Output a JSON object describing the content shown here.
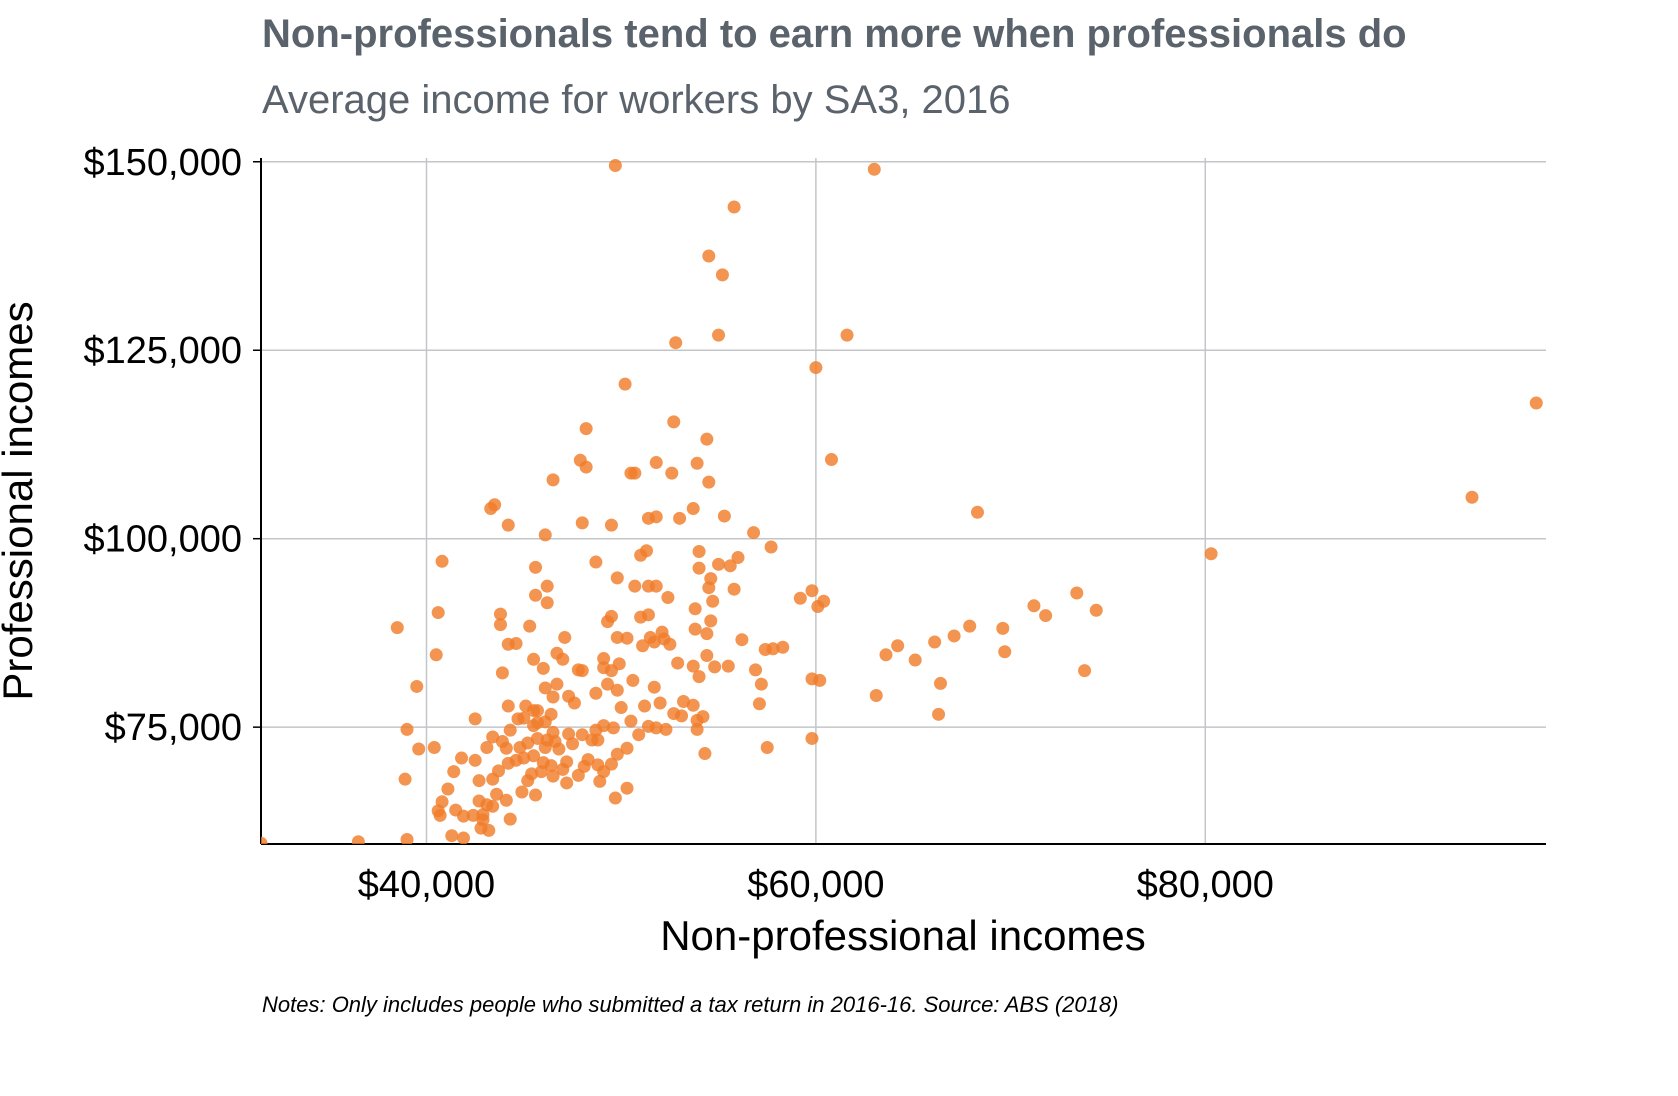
{
  "chart_data": {
    "type": "scatter",
    "title": "Non-professionals tend to earn more when professionals do",
    "subtitle": "Average income for workers by SA3, 2016",
    "xlabel": "Non-professional incomes",
    "ylabel": "Professional incomes",
    "notes": "Notes: Only includes people who submitted a tax return in 2016-16. Source: ABS (2018)",
    "xlim": [
      31500,
      97500
    ],
    "ylim": [
      59500,
      150500
    ],
    "xticks": [
      {
        "value": 40000,
        "label": "$40,000"
      },
      {
        "value": 60000,
        "label": "$60,000"
      },
      {
        "value": 80000,
        "label": "$80,000"
      }
    ],
    "yticks": [
      {
        "value": 75000,
        "label": "$75,000"
      },
      {
        "value": 100000,
        "label": "$100,000"
      },
      {
        "value": 125000,
        "label": "$125,000"
      },
      {
        "value": 150000,
        "label": "$150,000"
      }
    ],
    "grid": true,
    "point_color": "#f07d29",
    "points": [
      [
        49700,
        149500
      ],
      [
        63000,
        149000
      ],
      [
        55800,
        144000
      ],
      [
        54500,
        137500
      ],
      [
        55200,
        135000
      ],
      [
        55000,
        127000
      ],
      [
        61600,
        127000
      ],
      [
        52800,
        126000
      ],
      [
        60000,
        122700
      ],
      [
        50200,
        120500
      ],
      [
        93700,
        105500
      ],
      [
        97000,
        118000
      ],
      [
        80300,
        98000
      ],
      [
        68300,
        103500
      ],
      [
        60800,
        110500
      ],
      [
        52700,
        115500
      ],
      [
        48200,
        114600
      ],
      [
        54400,
        113200
      ],
      [
        47900,
        110400
      ],
      [
        48200,
        109500
      ],
      [
        50500,
        108700
      ],
      [
        50700,
        108700
      ],
      [
        51800,
        110100
      ],
      [
        52600,
        108700
      ],
      [
        53900,
        110000
      ],
      [
        54500,
        107500
      ],
      [
        46500,
        107800
      ],
      [
        43500,
        104500
      ],
      [
        43300,
        104000
      ],
      [
        44200,
        101800
      ],
      [
        46100,
        100500
      ],
      [
        48000,
        102100
      ],
      [
        49500,
        101800
      ],
      [
        51400,
        102700
      ],
      [
        51800,
        102900
      ],
      [
        53000,
        102700
      ],
      [
        53700,
        104000
      ],
      [
        55300,
        103000
      ],
      [
        56800,
        100800
      ],
      [
        57700,
        98900
      ],
      [
        40800,
        97000
      ],
      [
        40600,
        90200
      ],
      [
        40500,
        84600
      ],
      [
        39500,
        80400
      ],
      [
        38500,
        88200
      ],
      [
        39000,
        74700
      ],
      [
        38900,
        68100
      ],
      [
        39600,
        72100
      ],
      [
        40400,
        72300
      ],
      [
        36500,
        59800
      ],
      [
        39000,
        60100
      ],
      [
        31500,
        59600
      ],
      [
        43800,
        90000
      ],
      [
        43800,
        88600
      ],
      [
        44200,
        86000
      ],
      [
        44600,
        86100
      ],
      [
        43900,
        82200
      ],
      [
        45300,
        88400
      ],
      [
        45600,
        96200
      ],
      [
        45600,
        92500
      ],
      [
        46200,
        93700
      ],
      [
        46200,
        91500
      ],
      [
        48700,
        96900
      ],
      [
        49800,
        94800
      ],
      [
        50700,
        93700
      ],
      [
        51400,
        93700
      ],
      [
        51800,
        93700
      ],
      [
        51300,
        98400
      ],
      [
        51000,
        97800
      ],
      [
        52400,
        92200
      ],
      [
        54000,
        96100
      ],
      [
        54500,
        93500
      ],
      [
        54700,
        91700
      ],
      [
        54600,
        94700
      ],
      [
        55000,
        96600
      ],
      [
        55600,
        96400
      ],
      [
        56000,
        97500
      ],
      [
        55800,
        93300
      ],
      [
        54000,
        98300
      ],
      [
        53800,
        90700
      ],
      [
        49500,
        89700
      ],
      [
        49300,
        89000
      ],
      [
        49800,
        86900
      ],
      [
        51000,
        89600
      ],
      [
        51400,
        89900
      ],
      [
        52100,
        87600
      ],
      [
        51500,
        86900
      ],
      [
        52200,
        86700
      ],
      [
        52500,
        86000
      ],
      [
        51700,
        86300
      ],
      [
        51100,
        85800
      ],
      [
        50300,
        86800
      ],
      [
        53800,
        88000
      ],
      [
        54400,
        87400
      ],
      [
        54600,
        89100
      ],
      [
        54400,
        84500
      ],
      [
        54800,
        83000
      ],
      [
        55500,
        83100
      ],
      [
        56200,
        86600
      ],
      [
        56900,
        82600
      ],
      [
        57400,
        85300
      ],
      [
        57800,
        85400
      ],
      [
        58300,
        85600
      ],
      [
        59200,
        92100
      ],
      [
        59800,
        93100
      ],
      [
        60100,
        91000
      ],
      [
        60400,
        91700
      ],
      [
        57200,
        80700
      ],
      [
        57100,
        78100
      ],
      [
        59800,
        81400
      ],
      [
        60200,
        81200
      ],
      [
        57500,
        72300
      ],
      [
        59800,
        73500
      ],
      [
        63100,
        79200
      ],
      [
        63600,
        84600
      ],
      [
        64200,
        85800
      ],
      [
        65100,
        83900
      ],
      [
        66100,
        86300
      ],
      [
        66400,
        80800
      ],
      [
        66300,
        76700
      ],
      [
        67100,
        87100
      ],
      [
        67900,
        88400
      ],
      [
        69600,
        88100
      ],
      [
        69700,
        85000
      ],
      [
        71200,
        91100
      ],
      [
        71800,
        89800
      ],
      [
        73400,
        92800
      ],
      [
        73800,
        82500
      ],
      [
        74400,
        90500
      ],
      [
        45500,
        84000
      ],
      [
        46000,
        82800
      ],
      [
        46700,
        84800
      ],
      [
        47100,
        86900
      ],
      [
        47000,
        84000
      ],
      [
        46100,
        80200
      ],
      [
        46700,
        80700
      ],
      [
        47800,
        82600
      ],
      [
        48000,
        82500
      ],
      [
        49100,
        84100
      ],
      [
        49100,
        82900
      ],
      [
        49500,
        82500
      ],
      [
        49900,
        83400
      ],
      [
        49300,
        80700
      ],
      [
        49800,
        79900
      ],
      [
        50600,
        81200
      ],
      [
        50000,
        77600
      ],
      [
        48700,
        79500
      ],
      [
        47600,
        78200
      ],
      [
        47300,
        79100
      ],
      [
        46500,
        79000
      ],
      [
        45700,
        77200
      ],
      [
        46400,
        76700
      ],
      [
        46100,
        75700
      ],
      [
        45500,
        77200
      ],
      [
        45100,
        77800
      ],
      [
        45000,
        76200
      ],
      [
        44700,
        76100
      ],
      [
        45500,
        75200
      ],
      [
        45700,
        75600
      ],
      [
        44200,
        77800
      ],
      [
        44300,
        74600
      ],
      [
        43400,
        73700
      ],
      [
        43100,
        72300
      ],
      [
        42500,
        76100
      ],
      [
        43900,
        73100
      ],
      [
        44100,
        72200
      ],
      [
        44800,
        72300
      ],
      [
        45200,
        72900
      ],
      [
        45700,
        73500
      ],
      [
        46500,
        74300
      ],
      [
        46600,
        73100
      ],
      [
        46100,
        72300
      ],
      [
        46800,
        72100
      ],
      [
        47300,
        74100
      ],
      [
        47500,
        72800
      ],
      [
        48000,
        74000
      ],
      [
        48500,
        73300
      ],
      [
        48700,
        74600
      ],
      [
        48800,
        73300
      ],
      [
        49100,
        75200
      ],
      [
        49600,
        74900
      ],
      [
        50500,
        75800
      ],
      [
        50900,
        74000
      ],
      [
        51400,
        75100
      ],
      [
        51800,
        74900
      ],
      [
        52300,
        74700
      ],
      [
        51200,
        77800
      ],
      [
        52000,
        78200
      ],
      [
        52700,
        76800
      ],
      [
        53100,
        76500
      ],
      [
        53700,
        77900
      ],
      [
        53900,
        75900
      ],
      [
        54200,
        76400
      ],
      [
        53900,
        74700
      ],
      [
        54300,
        71500
      ],
      [
        53700,
        83100
      ],
      [
        54000,
        81700
      ],
      [
        52900,
        83500
      ],
      [
        53200,
        78400
      ],
      [
        51700,
        80300
      ],
      [
        50300,
        72200
      ],
      [
        49800,
        71400
      ],
      [
        49500,
        70100
      ],
      [
        48800,
        70000
      ],
      [
        48300,
        70700
      ],
      [
        48100,
        69800
      ],
      [
        48900,
        67800
      ],
      [
        49100,
        69100
      ],
      [
        49700,
        65600
      ],
      [
        50300,
        66900
      ],
      [
        47200,
        70400
      ],
      [
        47000,
        69400
      ],
      [
        47200,
        67600
      ],
      [
        47800,
        68600
      ],
      [
        46400,
        69900
      ],
      [
        46000,
        70300
      ],
      [
        45500,
        71200
      ],
      [
        45000,
        70900
      ],
      [
        44600,
        70600
      ],
      [
        44200,
        70200
      ],
      [
        43700,
        69200
      ],
      [
        43400,
        68100
      ],
      [
        42700,
        67900
      ],
      [
        42500,
        70600
      ],
      [
        41800,
        70900
      ],
      [
        41400,
        69100
      ],
      [
        41100,
        66800
      ],
      [
        40800,
        65100
      ],
      [
        40600,
        63900
      ],
      [
        40700,
        63300
      ],
      [
        41500,
        64000
      ],
      [
        41900,
        63200
      ],
      [
        42400,
        63300
      ],
      [
        42900,
        63400
      ],
      [
        43400,
        64500
      ],
      [
        43600,
        66100
      ],
      [
        44100,
        65300
      ],
      [
        44300,
        62800
      ],
      [
        43200,
        61300
      ],
      [
        42800,
        61600
      ],
      [
        41300,
        60600
      ],
      [
        41900,
        60300
      ],
      [
        44900,
        66400
      ],
      [
        45200,
        67900
      ],
      [
        45600,
        66000
      ],
      [
        45400,
        68800
      ],
      [
        45900,
        69100
      ],
      [
        46500,
        68500
      ],
      [
        46200,
        73300
      ],
      [
        42900,
        62700
      ],
      [
        43100,
        64700
      ],
      [
        42700,
        65200
      ]
    ]
  }
}
